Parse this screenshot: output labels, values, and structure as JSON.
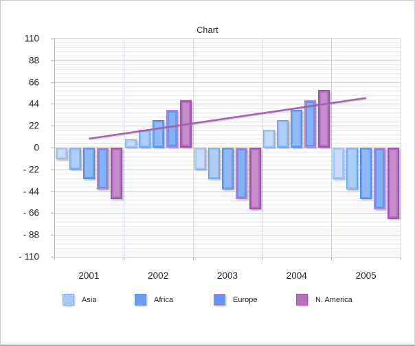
{
  "title": "Chart",
  "chart_data": {
    "type": "bar",
    "title": "Chart",
    "categories": [
      "2001",
      "2002",
      "2003",
      "2004",
      "2005"
    ],
    "series": [
      {
        "name": "Asia",
        "values": [
          -12,
          8,
          -22,
          18,
          -32
        ],
        "fill": "#a9c9f7",
        "border": "#86afef",
        "highlight": "#cfe0fb",
        "border_px": 1.5
      },
      {
        "name": "",
        "values": [
          -22,
          18,
          -32,
          28,
          -42
        ],
        "fill": "#8ebaf4",
        "border": "#6aa2f0",
        "highlight": "#b7d3f9",
        "border_px": 1.5
      },
      {
        "name": "Africa",
        "values": [
          -32,
          28,
          -42,
          38,
          -52
        ],
        "fill": "#679ef0",
        "border": "#4c8bec",
        "highlight": "#9ac0f6",
        "border_px": 1.5
      },
      {
        "name": "Europe",
        "values": [
          -42,
          38,
          -52,
          48,
          -62
        ],
        "fill": "#5d97f1",
        "border": "#c07fc9",
        "highlight": "#8fb8f6",
        "border_px": 2.5
      },
      {
        "name": "N. America",
        "values": [
          -52,
          48,
          -62,
          58,
          -72
        ],
        "fill": "#b671be",
        "border": "#9f52ad",
        "highlight": "#ca93d0",
        "border_px": 2
      }
    ],
    "trendline": {
      "start_category": "2001",
      "start_value": 9,
      "end_category": "2005",
      "end_value": 50,
      "color": "#a55bb0"
    },
    "y_axis": {
      "min": -110,
      "max": 110,
      "major_step": 22,
      "minor_step": 4.4,
      "tick_labels": [
        "110",
        "88",
        "66",
        "44",
        "22",
        "0",
        "- 22",
        "- 44",
        "- 66",
        "- 88",
        "- 110"
      ]
    },
    "x_axis": {
      "labels": [
        "2001",
        "2002",
        "2003",
        "2004",
        "2005"
      ]
    },
    "grid": {
      "horizontal_major": true,
      "horizontal_minor": true,
      "vertical_category_boundaries": true
    },
    "legend": {
      "position": "bottom",
      "items": [
        {
          "label": "Asia",
          "fill": "#a9c9f7",
          "border": "#7ea9ea"
        },
        {
          "label": "Africa",
          "fill": "#6d9eeb",
          "border": "#5e92e8"
        },
        {
          "label": "Europe",
          "fill": "#5d97f1",
          "border": "#c07fc9"
        },
        {
          "label": "N. America",
          "fill": "#b671be",
          "border": "#9f52ad"
        }
      ],
      "item_x_positions": [
        90,
        195,
        310,
        430
      ]
    }
  }
}
